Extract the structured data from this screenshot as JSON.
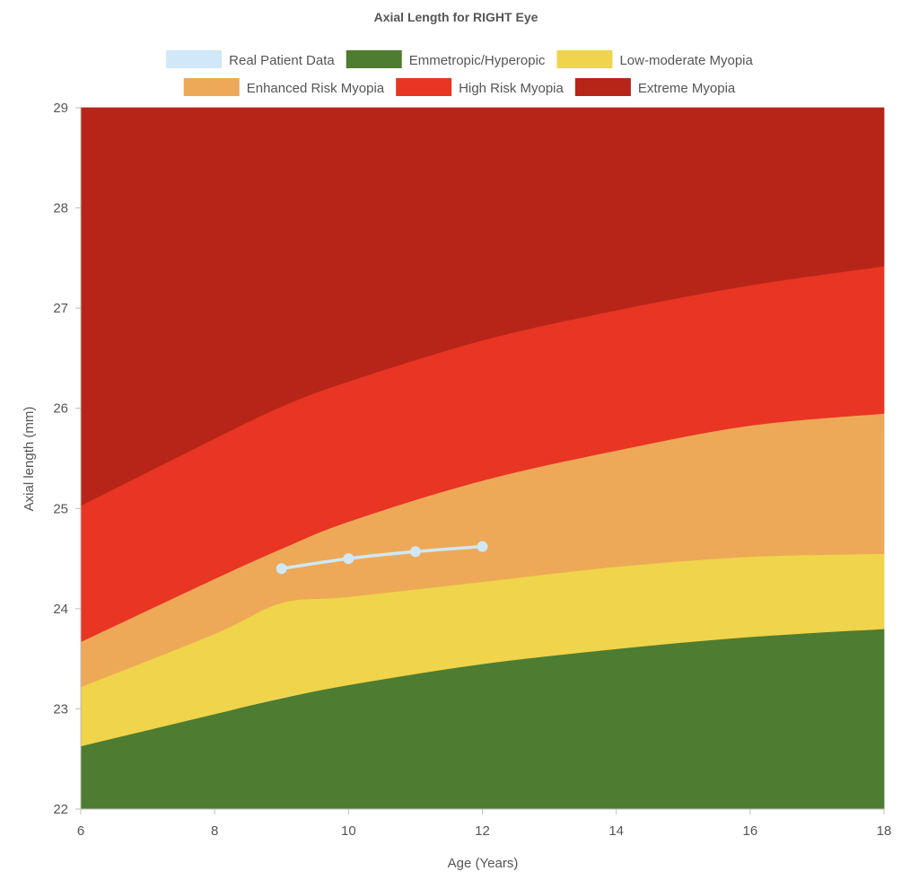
{
  "chart_data": {
    "type": "area",
    "title": "Axial Length for RIGHT Eye",
    "xlabel": "Age (Years)",
    "ylabel": "Axial length (mm)",
    "xlim": [
      6,
      18
    ],
    "ylim": [
      22,
      29
    ],
    "x_ticks": [
      6,
      8,
      10,
      12,
      14,
      16,
      18
    ],
    "y_ticks": [
      22,
      23,
      24,
      25,
      26,
      27,
      28,
      29
    ],
    "x_tick_labels": [
      "6",
      "8",
      "10",
      "12",
      "14",
      "16",
      "18"
    ],
    "y_tick_labels": [
      "22",
      "23",
      "24",
      "25",
      "26",
      "27",
      "28",
      "29"
    ],
    "grid": false,
    "legend_position": "top",
    "legend": [
      {
        "label": "Real Patient Data",
        "color": "#d0e8f7"
      },
      {
        "label": "Emmetropic/Hyperopic",
        "color": "#4e7c31"
      },
      {
        "label": "Low-moderate Myopia",
        "color": "#f0d44b"
      },
      {
        "label": "Enhanced Risk Myopia",
        "color": "#eda958"
      },
      {
        "label": "High Risk Myopia",
        "color": "#e83524"
      },
      {
        "label": "Extreme Myopia",
        "color": "#b72518"
      }
    ],
    "bands": [
      {
        "name": "Emmetropic/Hyperopic",
        "color": "#4e7c31",
        "x": [
          6,
          8,
          10,
          12,
          14,
          16,
          18
        ],
        "lower": [
          22,
          22,
          22,
          22,
          22,
          22,
          22
        ],
        "upper": [
          22.63,
          22.95,
          23.24,
          23.45,
          23.6,
          23.72,
          23.8
        ]
      },
      {
        "name": "Low-moderate Myopia",
        "color": "#f0d44b",
        "x": [
          6,
          8,
          9,
          10,
          12,
          14,
          16,
          18
        ],
        "lower": [
          22.63,
          22.95,
          23.11,
          23.24,
          23.45,
          23.6,
          23.72,
          23.8
        ],
        "upper": [
          23.22,
          23.75,
          24.06,
          24.12,
          24.27,
          24.42,
          24.52,
          24.55
        ]
      },
      {
        "name": "Enhanced Risk Myopia",
        "color": "#eda958",
        "x": [
          6,
          8,
          9,
          10,
          12,
          14,
          16,
          18
        ],
        "lower": [
          23.22,
          23.75,
          24.06,
          24.12,
          24.27,
          24.42,
          24.52,
          24.55
        ],
        "upper": [
          23.67,
          24.3,
          24.6,
          24.87,
          25.28,
          25.58,
          25.83,
          25.95
        ]
      },
      {
        "name": "High Risk Myopia",
        "color": "#e83524",
        "x": [
          6,
          8,
          9,
          10,
          12,
          14,
          16,
          18
        ],
        "lower": [
          23.67,
          24.3,
          24.6,
          24.87,
          25.28,
          25.58,
          25.83,
          25.95
        ],
        "upper": [
          25.03,
          25.7,
          26.02,
          26.27,
          26.68,
          26.98,
          27.23,
          27.42
        ]
      },
      {
        "name": "Extreme Myopia",
        "color": "#b72518",
        "x": [
          6,
          8,
          9,
          10,
          12,
          14,
          16,
          18
        ],
        "lower": [
          25.03,
          25.7,
          26.02,
          26.27,
          26.68,
          26.98,
          27.23,
          27.42
        ],
        "upper": [
          29,
          29,
          29,
          29,
          29,
          29,
          29,
          29
        ]
      }
    ],
    "series": [
      {
        "name": "Real Patient Data",
        "color": "#d0e8f7",
        "x": [
          9,
          10,
          11,
          12
        ],
        "y": [
          24.4,
          24.5,
          24.57,
          24.62
        ]
      }
    ]
  }
}
